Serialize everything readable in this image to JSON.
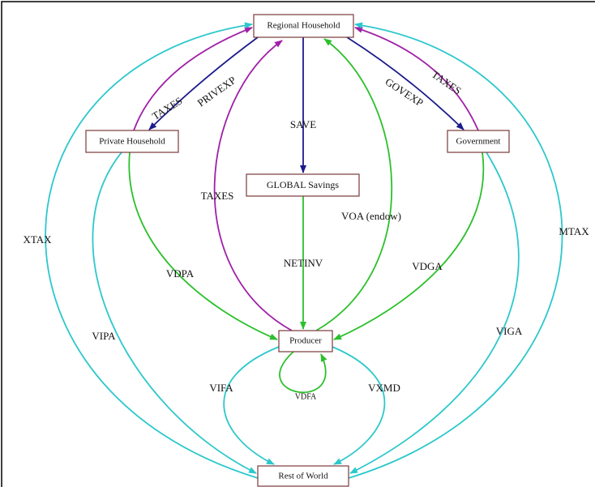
{
  "nodes": [
    {
      "label": "Regional Household"
    },
    {
      "label": "Private Household"
    },
    {
      "label": "Government"
    },
    {
      "label": "GLOBAL Savings"
    },
    {
      "label": "Producer"
    },
    {
      "label": "Rest of World"
    }
  ],
  "edges": [
    {
      "label": "TAXES"
    },
    {
      "label": "PRIVEXP"
    },
    {
      "label": "SAVE"
    },
    {
      "label": "GOVEXP"
    },
    {
      "label": "TAXES"
    },
    {
      "label": "TAXES"
    },
    {
      "label": "VOA (endow)"
    },
    {
      "label": "NETINV"
    },
    {
      "label": "XTAX"
    },
    {
      "label": "MTAX"
    },
    {
      "label": "VDPA"
    },
    {
      "label": "VDGA"
    },
    {
      "label": "VIPA"
    },
    {
      "label": "VIGA"
    },
    {
      "label": "VDFA"
    },
    {
      "label": "VIFA"
    },
    {
      "label": "VXMD"
    }
  ]
}
